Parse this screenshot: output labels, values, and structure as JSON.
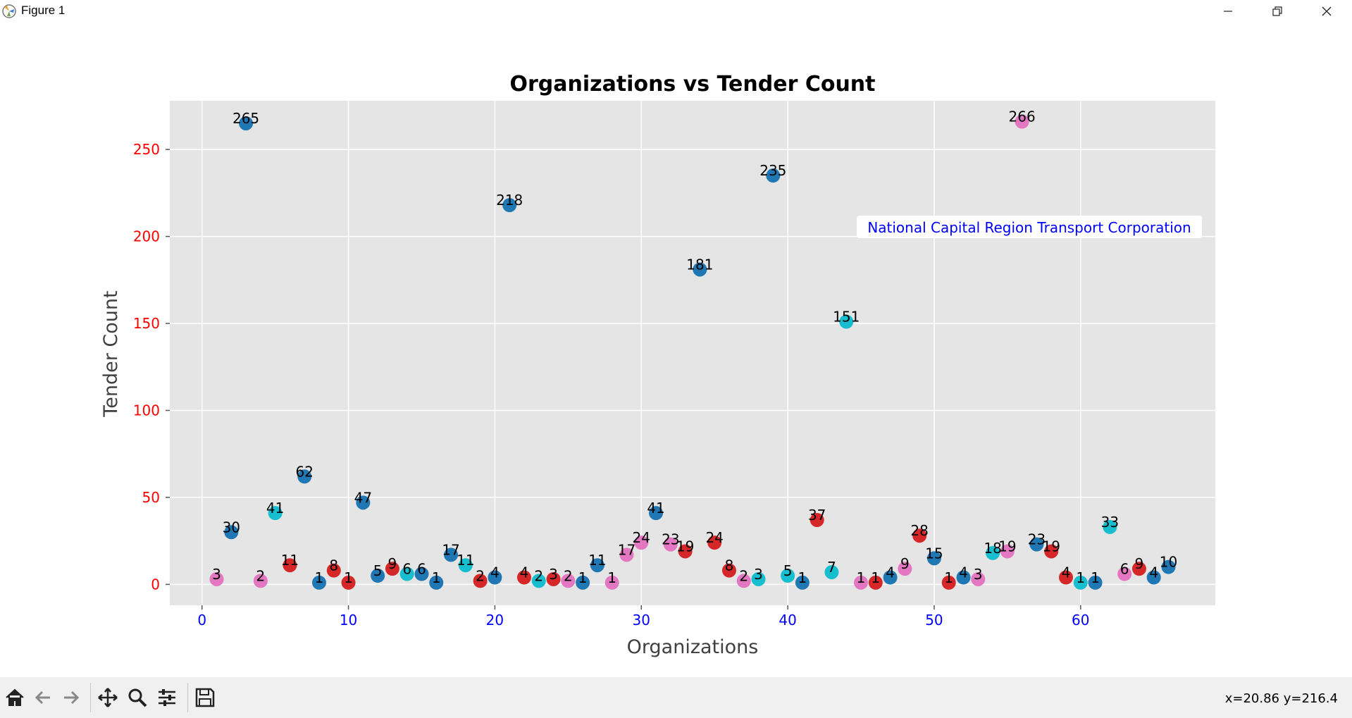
{
  "window": {
    "title": "Figure 1"
  },
  "toolbar": {
    "coords": "x=20.86 y=216.4"
  },
  "colors": {
    "axes_bg": "#e5e5e5",
    "grid": "#ffffff",
    "tick_y": "#ff0000",
    "tick_x": "#0000ff",
    "annotation": "#0000ff"
  },
  "chart_data": {
    "type": "scatter",
    "title": "Organizations vs Tender Count",
    "xlabel": "Organizations",
    "ylabel": "Tender Count",
    "xlim": [
      -2.2,
      69.2
    ],
    "ylim": [
      -12,
      278
    ],
    "xticks": [
      0,
      10,
      20,
      30,
      40,
      50,
      60
    ],
    "yticks": [
      0,
      50,
      100,
      150,
      200,
      250
    ],
    "grid": true,
    "annotation": {
      "text": "National Capital Region Transport Corporation",
      "x": 56.5,
      "y": 206
    },
    "points": [
      {
        "x": 1,
        "y": 3,
        "c": "#e377c2"
      },
      {
        "x": 2,
        "y": 30,
        "c": "#1f77b4"
      },
      {
        "x": 3,
        "y": 265,
        "c": "#1f77b4"
      },
      {
        "x": 4,
        "y": 2,
        "c": "#e377c2"
      },
      {
        "x": 5,
        "y": 41,
        "c": "#17becf"
      },
      {
        "x": 6,
        "y": 11,
        "c": "#d62728"
      },
      {
        "x": 7,
        "y": 62,
        "c": "#1f77b4"
      },
      {
        "x": 8,
        "y": 1,
        "c": "#1f77b4"
      },
      {
        "x": 9,
        "y": 8,
        "c": "#d62728"
      },
      {
        "x": 10,
        "y": 1,
        "c": "#d62728"
      },
      {
        "x": 11,
        "y": 47,
        "c": "#1f77b4"
      },
      {
        "x": 12,
        "y": 5,
        "c": "#1f77b4"
      },
      {
        "x": 13,
        "y": 9,
        "c": "#d62728"
      },
      {
        "x": 14,
        "y": 6,
        "c": "#17becf"
      },
      {
        "x": 15,
        "y": 6,
        "c": "#1f77b4"
      },
      {
        "x": 16,
        "y": 1,
        "c": "#1f77b4"
      },
      {
        "x": 17,
        "y": 17,
        "c": "#1f77b4"
      },
      {
        "x": 18,
        "y": 11,
        "c": "#17becf"
      },
      {
        "x": 19,
        "y": 2,
        "c": "#d62728"
      },
      {
        "x": 20,
        "y": 4,
        "c": "#1f77b4"
      },
      {
        "x": 21,
        "y": 218,
        "c": "#1f77b4"
      },
      {
        "x": 22,
        "y": 4,
        "c": "#d62728"
      },
      {
        "x": 23,
        "y": 2,
        "c": "#17becf"
      },
      {
        "x": 24,
        "y": 3,
        "c": "#d62728"
      },
      {
        "x": 25,
        "y": 2,
        "c": "#e377c2"
      },
      {
        "x": 26,
        "y": 1,
        "c": "#1f77b4"
      },
      {
        "x": 27,
        "y": 11,
        "c": "#1f77b4"
      },
      {
        "x": 28,
        "y": 1,
        "c": "#e377c2"
      },
      {
        "x": 29,
        "y": 17,
        "c": "#e377c2"
      },
      {
        "x": 30,
        "y": 24,
        "c": "#e377c2"
      },
      {
        "x": 31,
        "y": 41,
        "c": "#1f77b4"
      },
      {
        "x": 32,
        "y": 23,
        "c": "#e377c2"
      },
      {
        "x": 33,
        "y": 19,
        "c": "#d62728"
      },
      {
        "x": 34,
        "y": 181,
        "c": "#1f77b4"
      },
      {
        "x": 35,
        "y": 24,
        "c": "#d62728"
      },
      {
        "x": 36,
        "y": 8,
        "c": "#d62728"
      },
      {
        "x": 37,
        "y": 2,
        "c": "#e377c2"
      },
      {
        "x": 38,
        "y": 3,
        "c": "#17becf"
      },
      {
        "x": 39,
        "y": 235,
        "c": "#1f77b4"
      },
      {
        "x": 40,
        "y": 5,
        "c": "#17becf"
      },
      {
        "x": 41,
        "y": 1,
        "c": "#1f77b4"
      },
      {
        "x": 42,
        "y": 37,
        "c": "#d62728"
      },
      {
        "x": 43,
        "y": 7,
        "c": "#17becf"
      },
      {
        "x": 44,
        "y": 151,
        "c": "#17becf"
      },
      {
        "x": 45,
        "y": 1,
        "c": "#e377c2"
      },
      {
        "x": 46,
        "y": 1,
        "c": "#d62728"
      },
      {
        "x": 47,
        "y": 4,
        "c": "#1f77b4"
      },
      {
        "x": 48,
        "y": 9,
        "c": "#e377c2"
      },
      {
        "x": 49,
        "y": 28,
        "c": "#d62728"
      },
      {
        "x": 50,
        "y": 15,
        "c": "#1f77b4"
      },
      {
        "x": 51,
        "y": 1,
        "c": "#d62728"
      },
      {
        "x": 52,
        "y": 4,
        "c": "#1f77b4"
      },
      {
        "x": 53,
        "y": 3,
        "c": "#e377c2"
      },
      {
        "x": 54,
        "y": 18,
        "c": "#17becf"
      },
      {
        "x": 55,
        "y": 19,
        "c": "#e377c2"
      },
      {
        "x": 56,
        "y": 266,
        "c": "#e377c2"
      },
      {
        "x": 57,
        "y": 23,
        "c": "#1f77b4"
      },
      {
        "x": 58,
        "y": 19,
        "c": "#d62728"
      },
      {
        "x": 59,
        "y": 4,
        "c": "#d62728"
      },
      {
        "x": 60,
        "y": 1,
        "c": "#17becf"
      },
      {
        "x": 61,
        "y": 1,
        "c": "#1f77b4"
      },
      {
        "x": 62,
        "y": 33,
        "c": "#17becf"
      },
      {
        "x": 63,
        "y": 6,
        "c": "#e377c2"
      },
      {
        "x": 64,
        "y": 9,
        "c": "#d62728"
      },
      {
        "x": 65,
        "y": 4,
        "c": "#1f77b4"
      },
      {
        "x": 66,
        "y": 10,
        "c": "#1f77b4"
      }
    ]
  }
}
